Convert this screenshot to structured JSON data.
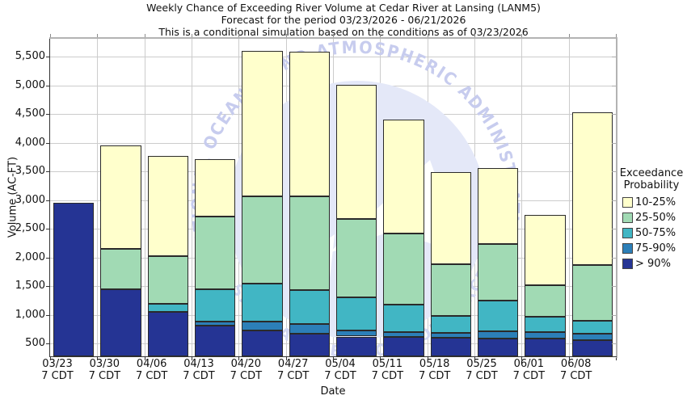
{
  "header": {
    "title_line1": "Weekly Chance of Exceeding River Volume at Cedar River at Lansing (LANM5)",
    "title_line2": "Forecast for the period 03/23/2026 - 06/21/2026",
    "title_line3": "This is a conditional simulation based on the conditions as of 03/23/2026"
  },
  "legend": {
    "title_line1": "Exceedance",
    "title_line2": "Probability",
    "items": [
      {
        "label": "10-25%",
        "color": "#ffffcc"
      },
      {
        "label": "25-50%",
        "color": "#a1dab4"
      },
      {
        "label": "50-75%",
        "color": "#41b6c4"
      },
      {
        "label": "75-90%",
        "color": "#2c7fb8"
      },
      {
        "label": "> 90%",
        "color": "#253494"
      }
    ]
  },
  "watermark": {
    "arc_text_top": "NATIONAL OCEANIC AND ATMOSPHERIC ADMINISTRATION",
    "arc_text_bottom": "U.S. DEPARTMENT OF COMMERCE",
    "text_color": "#c7ccee",
    "fill_color": "#e4e8f8"
  },
  "chart_data": {
    "type": "bar",
    "stacked": true,
    "title": "Weekly Chance of Exceeding River Volume at Cedar River at Lansing (LANM5)",
    "xlabel": "Date",
    "ylabel": "Volume (AC-FT)",
    "units": "AC-FT",
    "grid": true,
    "legend_position": "right",
    "ylim": [
      275,
      5810
    ],
    "baseline": 275,
    "y_ticks": [
      500,
      1000,
      1500,
      2000,
      2500,
      3000,
      3500,
      4000,
      4500,
      5000,
      5500
    ],
    "categories": [
      "03/23",
      "03/30",
      "04/06",
      "04/13",
      "04/20",
      "04/27",
      "05/04",
      "05/11",
      "05/18",
      "05/25",
      "06/01",
      "06/08"
    ],
    "x_tick_sub": "7 CDT",
    "series_note": "cumulative_top = upper value (AC-FT) of each stacked exceedance band, bottom band starts at baseline",
    "series": [
      {
        "name": "> 90%",
        "color": "#253494",
        "cumulative_top": [
          2945,
          1445,
          1045,
          815,
          720,
          675,
          620,
          610,
          600,
          590,
          585,
          560
        ]
      },
      {
        "name": "75-90%",
        "color": "#2c7fb8",
        "cumulative_top": [
          2945,
          1445,
          1045,
          875,
          880,
          840,
          720,
          700,
          690,
          715,
          695,
          675
        ]
      },
      {
        "name": "50-75%",
        "color": "#41b6c4",
        "cumulative_top": [
          2945,
          1445,
          1185,
          1445,
          1540,
          1430,
          1310,
          1180,
          980,
          1250,
          960,
          890
        ]
      },
      {
        "name": "25-50%",
        "color": "#a1dab4",
        "cumulative_top": [
          2945,
          2150,
          2020,
          2710,
          3070,
          3070,
          2670,
          2410,
          1880,
          2230,
          1515,
          1870
        ]
      },
      {
        "name": "10-25%",
        "color": "#ffffcc",
        "cumulative_top": [
          2945,
          3955,
          3770,
          3715,
          5595,
          5585,
          5005,
          4395,
          3490,
          3555,
          2740,
          4530
        ]
      }
    ],
    "style": {
      "grid_color": "#cccccc",
      "axis_color": "#333333",
      "frame_color": "#b3b3b3",
      "segment_border": "#2a2a2a"
    }
  }
}
